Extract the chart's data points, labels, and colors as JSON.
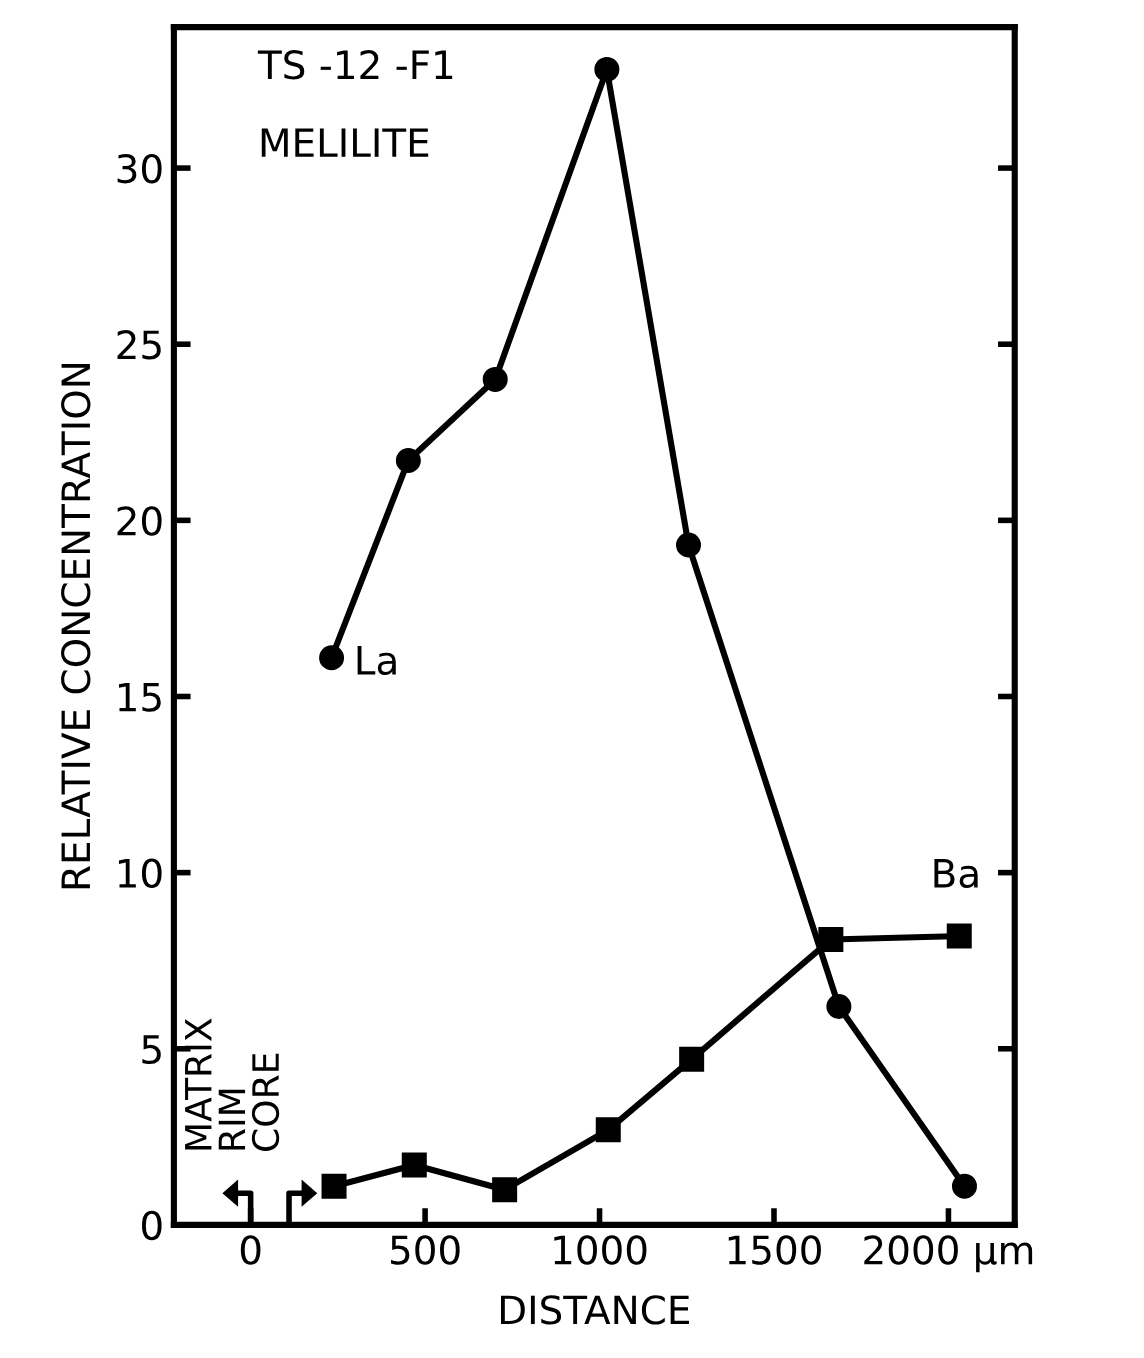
{
  "chart_data": {
    "type": "line",
    "xlabel": "DISTANCE",
    "ylabel": "RELATIVE CONCENTRATION",
    "xlim": [
      -220,
      2190
    ],
    "ylim": [
      0,
      34
    ],
    "xticks": [
      0,
      500,
      1000,
      1500,
      {
        "value": 2000,
        "label": "2000 μm"
      }
    ],
    "yticks": [
      0,
      5,
      10,
      15,
      20,
      25,
      30
    ],
    "grid": false,
    "line_style": "solid",
    "series": [
      {
        "color": "#000000",
        "marker": "circle",
        "x": [
          232,
          452,
          701,
          1021,
          1255,
          1686,
          2046
        ],
        "values": [
          16.1,
          21.7,
          24.0,
          32.8,
          19.3,
          6.2,
          1.1
        ]
      },
      {
        "color": "#000000",
        "marker": "square",
        "x": [
          239,
          469,
          728,
          1025,
          1264,
          1663,
          2031
        ],
        "values": [
          1.1,
          1.7,
          1.0,
          2.7,
          4.7,
          8.1,
          8.2
        ]
      }
    ],
    "annotations": [
      "TS -12 -F1",
      "MELILITE",
      "MATRIX",
      "RIM",
      "CORE",
      {
        "text": "La",
        "x": 232,
        "y": 16.1
      },
      "Ba"
    ]
  }
}
